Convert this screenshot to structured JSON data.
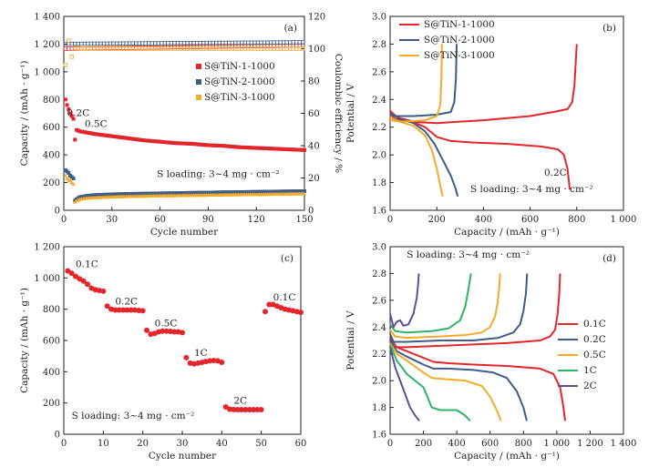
{
  "colors": {
    "tin1": "#E3262B",
    "tin2": "#3E5C86",
    "tin3": "#F2AB2A",
    "c01": "#E3262B",
    "c02": "#3E5C86",
    "c05": "#F2AB2A",
    "c1": "#2DB467",
    "c2": "#5B4F9B"
  },
  "chart_data": [
    {
      "panel": "(a)",
      "type": "scatter",
      "xlabel": "Cycle number",
      "ylabel": "Capacity / (mAh · g⁻¹)",
      "y2label": "Coulombic efficiency / %",
      "xlim": [
        0,
        150
      ],
      "ylim": [
        0,
        1400
      ],
      "y2lim": [
        0,
        120
      ],
      "xticks": [
        "0",
        "30",
        "60",
        "90",
        "120",
        "150"
      ],
      "yticks": [
        "0",
        "200",
        "400",
        "600",
        "800",
        "1 000",
        "1 200",
        "1 400"
      ],
      "y2ticks": [
        "0",
        "20",
        "40",
        "60",
        "80",
        "100",
        "120"
      ],
      "legend_position": "center-right",
      "annotations": [
        {
          "text": "0.2C",
          "x": 2,
          "y": 680
        },
        {
          "text": "0.5C",
          "x": 13,
          "y": 600
        },
        {
          "text": "S loading: 3~4 mg · cm⁻²",
          "x": 58,
          "y": 240
        }
      ],
      "series": [
        {
          "name": "S@TiN-1-1000",
          "color_key": "tin1",
          "marker": "square-filled",
          "capacity": {
            "x": [
              1,
              2,
              3,
              4,
              5,
              6,
              7,
              8,
              10,
              15,
              20,
              30,
              40,
              50,
              60,
              70,
              80,
              90,
              100,
              110,
              120,
              130,
              140,
              150
            ],
            "y": [
              800,
              760,
              730,
              700,
              680,
              660,
              510,
              580,
              570,
              560,
              550,
              535,
              520,
              505,
              495,
              485,
              480,
              470,
              465,
              455,
              450,
              445,
              440,
              435
            ]
          },
          "efficiency": {
            "x": [
              1,
              150
            ],
            "y": [
              100,
              102
            ]
          }
        },
        {
          "name": "S@TiN-2-1000",
          "color_key": "tin2",
          "marker": "square-open",
          "capacity": {
            "x": [
              1,
              2,
              3,
              4,
              5,
              6,
              7,
              8,
              10,
              15,
              20,
              30,
              40,
              60,
              90,
              120,
              150
            ],
            "y": [
              290,
              280,
              270,
              250,
              240,
              230,
              70,
              80,
              95,
              105,
              110,
              115,
              118,
              122,
              128,
              133,
              138
            ]
          },
          "efficiency": {
            "x": [
              1,
              150
            ],
            "y": [
              103,
              104
            ]
          }
        },
        {
          "name": "S@TiN-3-1000",
          "color_key": "tin3",
          "marker": "triangle",
          "capacity": {
            "x": [
              1,
              2,
              3,
              4,
              5,
              6,
              7,
              8,
              10,
              15,
              20,
              30,
              40,
              60,
              90,
              120,
              150
            ],
            "y": [
              250,
              230,
              220,
              215,
              200,
              190,
              60,
              70,
              80,
              88,
              92,
              97,
              100,
              105,
              110,
              115,
              120
            ]
          },
          "efficiency": {
            "x": [
              1,
              2,
              3,
              4,
              5,
              6,
              8,
              10,
              20,
              60,
              100,
              150
            ],
            "y": [
              90,
              110,
              105,
              112,
              95,
              100,
              101,
              100,
              100,
              100,
              100,
              100
            ]
          }
        }
      ]
    },
    {
      "panel": "(b)",
      "type": "line",
      "xlabel": "Capacity / (mAh · g⁻¹)",
      "ylabel": "Potential / V",
      "xlim": [
        0,
        1000
      ],
      "ylim": [
        1.6,
        3.0
      ],
      "xticks": [
        "0",
        "200",
        "400",
        "600",
        "800",
        "1 000"
      ],
      "yticks": [
        "1.6",
        "1.8",
        "2.0",
        "2.2",
        "2.4",
        "2.6",
        "2.8",
        "3.0"
      ],
      "legend_position": "top-right",
      "annotations": [
        {
          "text": "0.2C",
          "x": 660,
          "y": 1.85
        },
        {
          "text": "S loading: 3~4 mg · cm⁻²",
          "x": 870,
          "y": 1.73
        }
      ],
      "series": [
        {
          "name": "S@TiN-1-1000",
          "color_key": "tin1",
          "charge": {
            "x": [
              0,
              20,
              80,
              200,
              400,
              600,
              700,
              760,
              780,
              790,
              795,
              800
            ],
            "y": [
              2.3,
              2.26,
              2.24,
              2.23,
              2.25,
              2.28,
              2.31,
              2.33,
              2.38,
              2.5,
              2.65,
              2.8
            ]
          },
          "discharge": {
            "x": [
              0,
              30,
              80,
              150,
              200,
              260,
              350,
              500,
              650,
              720,
              745,
              760,
              770
            ],
            "y": [
              2.32,
              2.27,
              2.25,
              2.2,
              2.13,
              2.1,
              2.09,
              2.08,
              2.06,
              2.04,
              2.0,
              1.9,
              1.75
            ]
          }
        },
        {
          "name": "S@TiN-2-1000",
          "color_key": "tin2",
          "charge": {
            "x": [
              0,
              30,
              100,
              200,
              260,
              275,
              282,
              285
            ],
            "y": [
              2.29,
              2.28,
              2.28,
              2.29,
              2.31,
              2.38,
              2.55,
              2.8
            ]
          },
          "discharge": {
            "x": [
              0,
              40,
              100,
              150,
              190,
              230,
              260,
              280,
              290
            ],
            "y": [
              2.3,
              2.26,
              2.23,
              2.17,
              2.08,
              1.95,
              1.85,
              1.76,
              1.7
            ]
          }
        },
        {
          "name": "S@TiN-3-1000",
          "color_key": "tin3",
          "charge": {
            "x": [
              0,
              50,
              150,
              200,
              215,
              220,
              222
            ],
            "y": [
              2.25,
              2.24,
              2.25,
              2.28,
              2.36,
              2.55,
              2.8
            ]
          },
          "discharge": {
            "x": [
              0,
              40,
              100,
              150,
              180,
              200,
              215,
              225
            ],
            "y": [
              2.27,
              2.24,
              2.21,
              2.14,
              2.03,
              1.9,
              1.78,
              1.7
            ]
          }
        }
      ]
    },
    {
      "panel": "(c)",
      "type": "scatter",
      "xlabel": "Cycle number",
      "ylabel": "Capacity / (mAh · g⁻¹)",
      "xlim": [
        0,
        60
      ],
      "ylim": [
        0,
        1200
      ],
      "xticks": [
        "0",
        "10",
        "20",
        "30",
        "40",
        "50",
        "60"
      ],
      "yticks": [
        "0",
        "200",
        "400",
        "600",
        "800",
        "1 000",
        "1 200"
      ],
      "annotations": [
        {
          "text": "0.1C",
          "x": 3,
          "y": 1070
        },
        {
          "text": "0.2C",
          "x": 13,
          "y": 830
        },
        {
          "text": "0.5C",
          "x": 23,
          "y": 690
        },
        {
          "text": "1C",
          "x": 33,
          "y": 500
        },
        {
          "text": "2C",
          "x": 43,
          "y": 195
        },
        {
          "text": "0.1C",
          "x": 53,
          "y": 855
        },
        {
          "text": "S loading: 3~4 mg · cm⁻²",
          "x": 2,
          "y": 100
        }
      ],
      "series": [
        {
          "name": "",
          "color_key": "tin1",
          "x": [
            1,
            2,
            3,
            4,
            5,
            6,
            7,
            8,
            9,
            10,
            11,
            12,
            13,
            14,
            15,
            16,
            17,
            18,
            19,
            20,
            21,
            22,
            23,
            24,
            25,
            26,
            27,
            28,
            29,
            30,
            31,
            32,
            33,
            34,
            35,
            36,
            37,
            38,
            39,
            40,
            41,
            42,
            43,
            44,
            45,
            46,
            47,
            48,
            49,
            50,
            51,
            52,
            53,
            54,
            55,
            56,
            57,
            58,
            59,
            60
          ],
          "y": [
            1045,
            1030,
            1010,
            995,
            980,
            960,
            935,
            925,
            920,
            915,
            820,
            800,
            795,
            795,
            795,
            795,
            795,
            795,
            792,
            790,
            665,
            640,
            645,
            655,
            660,
            660,
            658,
            655,
            655,
            650,
            490,
            455,
            450,
            455,
            460,
            465,
            470,
            472,
            470,
            460,
            175,
            160,
            158,
            157,
            157,
            157,
            157,
            157,
            157,
            157,
            785,
            830,
            830,
            820,
            810,
            800,
            795,
            790,
            785,
            780
          ]
        }
      ]
    },
    {
      "panel": "(d)",
      "type": "line",
      "xlabel": "Capacity / (mAh · g⁻¹)",
      "ylabel": "Potential / V",
      "xlim": [
        0,
        1400
      ],
      "ylim": [
        1.6,
        3.0
      ],
      "xticks": [
        "0",
        "200",
        "400",
        "600",
        "800",
        "1 000",
        "1 200",
        "1 400"
      ],
      "yticks": [
        "1.6",
        "1.8",
        "2.0",
        "2.2",
        "2.4",
        "2.6",
        "2.8",
        "3.0"
      ],
      "legend_position": "center-right",
      "annotations": [
        {
          "text": "S loading: 3~4 mg · cm⁻²",
          "x": 100,
          "y": 2.92
        }
      ],
      "series": [
        {
          "name": "0.1C",
          "color_key": "c01",
          "charge": {
            "x": [
              0,
              20,
              100,
              300,
              500,
              700,
              900,
              960,
              990,
              1005,
              1015,
              1020
            ],
            "y": [
              2.3,
              2.25,
              2.25,
              2.26,
              2.27,
              2.28,
              2.3,
              2.33,
              2.38,
              2.5,
              2.65,
              2.8
            ]
          },
          "discharge": {
            "x": [
              0,
              40,
              100,
              200,
              260,
              350,
              500,
              700,
              900,
              980,
              1020,
              1040,
              1050
            ],
            "y": [
              2.32,
              2.25,
              2.22,
              2.17,
              2.14,
              2.13,
              2.12,
              2.11,
              2.09,
              2.05,
              1.95,
              1.8,
              1.7
            ]
          }
        },
        {
          "name": "0.2C",
          "color_key": "c02",
          "charge": {
            "x": [
              0,
              20,
              100,
              300,
              500,
              650,
              740,
              780,
              800,
              815,
              822
            ],
            "y": [
              2.35,
              2.29,
              2.29,
              2.3,
              2.3,
              2.32,
              2.36,
              2.42,
              2.52,
              2.65,
              2.8
            ]
          },
          "discharge": {
            "x": [
              0,
              40,
              100,
              200,
              260,
              350,
              500,
              620,
              700,
              760,
              800,
              820
            ],
            "y": [
              2.3,
              2.22,
              2.18,
              2.12,
              2.09,
              2.09,
              2.08,
              2.06,
              2.02,
              1.92,
              1.8,
              1.7
            ]
          }
        },
        {
          "name": "0.5C",
          "color_key": "c05",
          "charge": {
            "x": [
              0,
              30,
              100,
              300,
              450,
              550,
              600,
              630,
              645,
              655,
              660
            ],
            "y": [
              2.38,
              2.33,
              2.32,
              2.33,
              2.34,
              2.36,
              2.4,
              2.48,
              2.58,
              2.7,
              2.8
            ]
          },
          "discharge": {
            "x": [
              0,
              40,
              100,
              200,
              250,
              350,
              450,
              550,
              600,
              640,
              665
            ],
            "y": [
              2.28,
              2.2,
              2.15,
              2.06,
              2.02,
              2.01,
              2.0,
              1.96,
              1.88,
              1.78,
              1.7
            ]
          }
        },
        {
          "name": "1C",
          "color_key": "c1",
          "charge": {
            "x": [
              0,
              30,
              100,
              250,
              350,
              420,
              450,
              470,
              485
            ],
            "y": [
              2.42,
              2.37,
              2.36,
              2.37,
              2.39,
              2.45,
              2.55,
              2.68,
              2.8
            ]
          },
          "discharge": {
            "x": [
              0,
              40,
              100,
              200,
              250,
              300,
              400,
              450,
              480
            ],
            "y": [
              2.27,
              2.15,
              2.05,
              1.95,
              1.8,
              1.78,
              1.78,
              1.74,
              1.7
            ]
          }
        },
        {
          "name": "2C",
          "color_key": "c2",
          "charge": {
            "x": [
              0,
              20,
              40,
              60,
              80,
              110,
              140,
              160,
              168,
              172
            ],
            "y": [
              2.5,
              2.4,
              2.44,
              2.45,
              2.41,
              2.42,
              2.5,
              2.62,
              2.72,
              2.8
            ]
          },
          "discharge": {
            "x": [
              0,
              30,
              60,
              90,
              120,
              150,
              175
            ],
            "y": [
              2.25,
              2.1,
              2.0,
              1.9,
              1.8,
              1.74,
              1.7
            ]
          }
        }
      ]
    }
  ]
}
